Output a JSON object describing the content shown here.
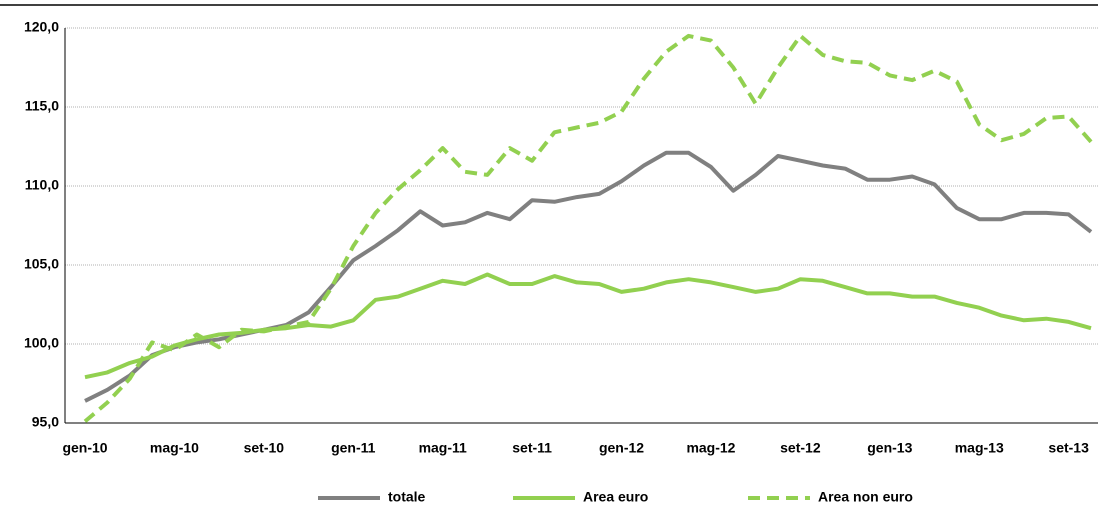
{
  "chart_data": {
    "type": "line",
    "categories": [
      "gen-10",
      null,
      null,
      null,
      "mag-10",
      null,
      null,
      null,
      "set-10",
      null,
      null,
      null,
      "gen-11",
      null,
      null,
      null,
      "mag-11",
      null,
      null,
      null,
      "set-11",
      null,
      null,
      null,
      "gen-12",
      null,
      null,
      null,
      "mag-12",
      null,
      null,
      null,
      "set-12",
      null,
      null,
      null,
      "gen-13",
      null,
      null,
      null,
      "mag-13",
      null,
      null,
      null,
      "set-13",
      null
    ],
    "series": [
      {
        "name": "totale",
        "color": "#808080",
        "dash": false,
        "values": [
          96.4,
          97.1,
          98.0,
          99.3,
          99.8,
          100.1,
          100.3,
          100.6,
          100.9,
          101.2,
          102.0,
          103.6,
          105.3,
          106.2,
          107.2,
          108.4,
          107.5,
          107.7,
          108.3,
          107.9,
          109.1,
          109.0,
          109.3,
          109.5,
          110.3,
          111.3,
          112.1,
          112.1,
          111.2,
          109.7,
          110.7,
          111.9,
          111.6,
          111.3,
          111.1,
          110.4,
          110.4,
          110.6,
          110.1,
          108.6,
          107.9,
          107.9,
          108.3,
          108.3,
          108.2,
          107.1
        ]
      },
      {
        "name": "Area euro",
        "color": "#92d050",
        "dash": false,
        "values": [
          97.9,
          98.2,
          98.8,
          99.2,
          99.9,
          100.3,
          100.6,
          100.7,
          100.9,
          101.0,
          101.2,
          101.1,
          101.5,
          102.8,
          103.0,
          103.5,
          104.0,
          103.8,
          104.4,
          103.8,
          103.8,
          104.3,
          103.9,
          103.8,
          103.3,
          103.5,
          103.9,
          104.1,
          103.9,
          103.6,
          103.3,
          103.5,
          104.1,
          104.0,
          103.6,
          103.2,
          103.2,
          103.0,
          103.0,
          102.6,
          102.3,
          101.8,
          101.5,
          101.6,
          101.4,
          101.0
        ]
      },
      {
        "name": "Area non euro",
        "color": "#92d050",
        "dash": true,
        "values": [
          95.1,
          96.3,
          97.8,
          100.1,
          99.6,
          100.6,
          99.8,
          100.9,
          100.8,
          101.1,
          101.4,
          103.5,
          106.2,
          108.3,
          109.8,
          111.0,
          112.4,
          110.9,
          110.7,
          112.4,
          111.6,
          113.4,
          113.7,
          114.0,
          114.7,
          116.8,
          118.5,
          119.5,
          119.2,
          117.5,
          115.2,
          117.5,
          119.5,
          118.3,
          117.9,
          117.8,
          117.0,
          116.7,
          117.3,
          116.6,
          113.9,
          112.9,
          113.3,
          114.3,
          114.4,
          112.8
        ]
      }
    ],
    "ylim": [
      95,
      120
    ],
    "yticks": [
      {
        "value": 95,
        "label": "95,0"
      },
      {
        "value": 100,
        "label": "100,0"
      },
      {
        "value": 105,
        "label": "105,0"
      },
      {
        "value": 110,
        "label": "110,0"
      },
      {
        "value": 115,
        "label": "115,0"
      },
      {
        "value": 120,
        "label": "120,0"
      }
    ],
    "grid": true,
    "legend": "bottom"
  }
}
